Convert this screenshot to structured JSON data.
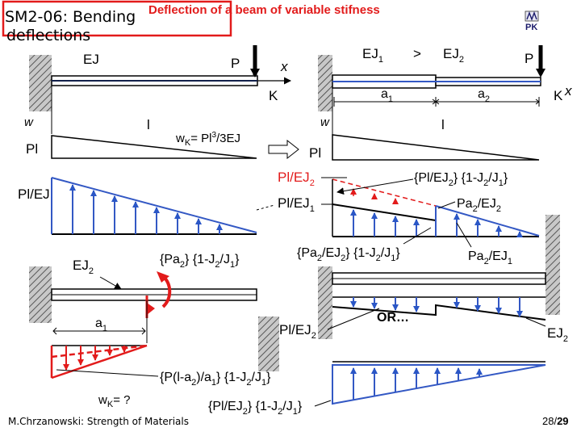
{
  "header": {
    "title_line1": "SM2-06: Bending",
    "title_line2": "deflections",
    "subtitle": "Deflection of a beam of variable stifness"
  },
  "logo": {
    "text": "PK"
  },
  "footer": {
    "author": "M.Chrzanowski: Strength of Materials",
    "page": "28/",
    "page_total": "29"
  },
  "labels": {
    "EJ": "EJ",
    "P": "P",
    "x": "x",
    "K": "K",
    "w": "w",
    "l": "l",
    "Pl": "Pl",
    "wK_formula_a": "w",
    "wK_formula_sub": "K",
    "wK_formula_b": "= Pl",
    "wK_formula_sup": "3",
    "wK_formula_c": "/3EJ",
    "Pl_over_EJ": "Pl/EJ",
    "Pl_over": "Pl/EJ",
    "sub1": "1",
    "sub2": "2",
    "EJ1_EJ": "EJ",
    "gt": ">",
    "a": "a",
    "bracket_open": "{Pl/EJ",
    "bracket_mid": "} {1-J",
    "bracket_slash": "/J",
    "bracket_close": "}",
    "Pa": "Pa",
    "slash_EJ": "/EJ",
    "Pa_br_open": "{Pa",
    "Pa_br_mid": "/EJ",
    "OR": "OR…",
    "Pa2_only_open": "{Pa",
    "Pa2_only_mid": "} {1-J",
    "bottom_formula_open": "{P(l-a",
    "bottom_formula_mid": ")/a",
    "bottom_formula_close": "} {1-J",
    "wK_question_a": "w",
    "wK_question_sub": "K",
    "wK_question_b": "= ?"
  }
}
